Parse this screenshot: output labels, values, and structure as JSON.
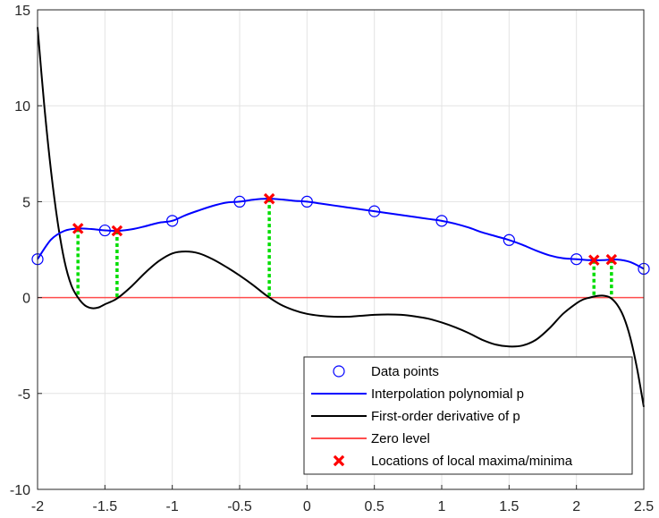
{
  "chart_data": {
    "type": "line",
    "title": "",
    "xlabel": "",
    "ylabel": "",
    "xlim": [
      -2,
      2.5
    ],
    "ylim": [
      -10,
      15
    ],
    "xticks": [
      -2,
      -1.5,
      -1,
      -0.5,
      0,
      0.5,
      1,
      1.5,
      2,
      2.5
    ],
    "xtick_labels": [
      "-2",
      "-1.5",
      "-1",
      "-0.5",
      "0",
      "0.5",
      "1",
      "1.5",
      "2",
      "2.5"
    ],
    "yticks": [
      -10,
      -5,
      0,
      5,
      10,
      15
    ],
    "ytick_labels": [
      "-10",
      "-5",
      "0",
      "5",
      "10",
      "15"
    ],
    "grid": true,
    "legend_position": "bottom-right",
    "series": [
      {
        "name": "Data points",
        "kind": "markers",
        "marker": "circle",
        "color": "#0000ff",
        "x": [
          -2,
          -1.5,
          -1,
          -0.5,
          0,
          0.5,
          1,
          1.5,
          2,
          2.5
        ],
        "y": [
          2,
          3.5,
          4,
          5,
          5,
          4.5,
          4,
          3,
          2,
          1.5
        ]
      },
      {
        "name": "Interpolation polynomial p",
        "kind": "line",
        "color": "#0000ff",
        "x": [
          -2,
          -1.9,
          -1.8,
          -1.7,
          -1.6,
          -1.5,
          -1.4,
          -1.3,
          -1.2,
          -1.1,
          -1,
          -0.9,
          -0.8,
          -0.7,
          -0.6,
          -0.5,
          -0.4,
          -0.3,
          -0.2,
          -0.1,
          0,
          0.1,
          0.2,
          0.3,
          0.4,
          0.5,
          0.6,
          0.7,
          0.8,
          0.9,
          1,
          1.1,
          1.2,
          1.3,
          1.4,
          1.5,
          1.6,
          1.7,
          1.8,
          1.9,
          2,
          2.1,
          2.2,
          2.3,
          2.4,
          2.5
        ],
        "y": [
          2,
          3.02,
          3.48,
          3.6,
          3.57,
          3.5,
          3.48,
          3.56,
          3.72,
          3.9,
          4,
          4.3,
          4.55,
          4.78,
          4.95,
          5,
          5.1,
          5.15,
          5.12,
          5.05,
          5,
          4.9,
          4.8,
          4.7,
          4.6,
          4.5,
          4.4,
          4.3,
          4.2,
          4.1,
          4,
          3.85,
          3.65,
          3.4,
          3.2,
          3,
          2.75,
          2.45,
          2.2,
          2.05,
          2,
          1.95,
          1.95,
          1.98,
          1.85,
          1.5
        ]
      },
      {
        "name": "First-order derivative of p",
        "kind": "line",
        "color": "#000000",
        "x": [
          -2,
          -1.95,
          -1.9,
          -1.85,
          -1.8,
          -1.75,
          -1.7,
          -1.65,
          -1.6,
          -1.55,
          -1.5,
          -1.45,
          -1.4,
          -1.3,
          -1.2,
          -1.1,
          -1,
          -0.9,
          -0.8,
          -0.7,
          -0.6,
          -0.5,
          -0.4,
          -0.3,
          -0.2,
          -0.1,
          0,
          0.1,
          0.2,
          0.3,
          0.4,
          0.5,
          0.6,
          0.7,
          0.8,
          0.9,
          1,
          1.1,
          1.2,
          1.3,
          1.4,
          1.5,
          1.6,
          1.7,
          1.8,
          1.9,
          2,
          2.05,
          2.1,
          2.15,
          2.2,
          2.25,
          2.3,
          2.35,
          2.4,
          2.45,
          2.5
        ],
        "y": [
          14.1,
          10,
          6.6,
          3.9,
          1.9,
          0.65,
          0,
          -0.4,
          -0.55,
          -0.52,
          -0.35,
          -0.2,
          0,
          0.6,
          1.3,
          1.9,
          2.3,
          2.4,
          2.3,
          2.0,
          1.6,
          1.15,
          0.65,
          0.1,
          -0.35,
          -0.65,
          -0.85,
          -0.95,
          -1.0,
          -1.0,
          -0.95,
          -0.9,
          -0.88,
          -0.9,
          -0.98,
          -1.1,
          -1.3,
          -1.55,
          -1.85,
          -2.2,
          -2.45,
          -2.55,
          -2.5,
          -2.2,
          -1.6,
          -0.85,
          -0.3,
          -0.1,
          0,
          0.08,
          0.1,
          0.0,
          -0.35,
          -1.0,
          -2.1,
          -3.7,
          -5.7
        ]
      },
      {
        "name": "Zero level",
        "kind": "line",
        "color": "#ff4d4d",
        "x": [
          -2,
          2.5
        ],
        "y": [
          0,
          0
        ]
      },
      {
        "name": "Locations of local maxima/minima",
        "kind": "markers",
        "marker": "x",
        "color": "#ff0000",
        "x": [
          -1.7,
          -1.41,
          -0.28,
          2.13,
          2.26
        ],
        "y": [
          3.6,
          3.48,
          5.15,
          1.95,
          1.98
        ]
      }
    ],
    "dropline_color": "#00dd00"
  }
}
